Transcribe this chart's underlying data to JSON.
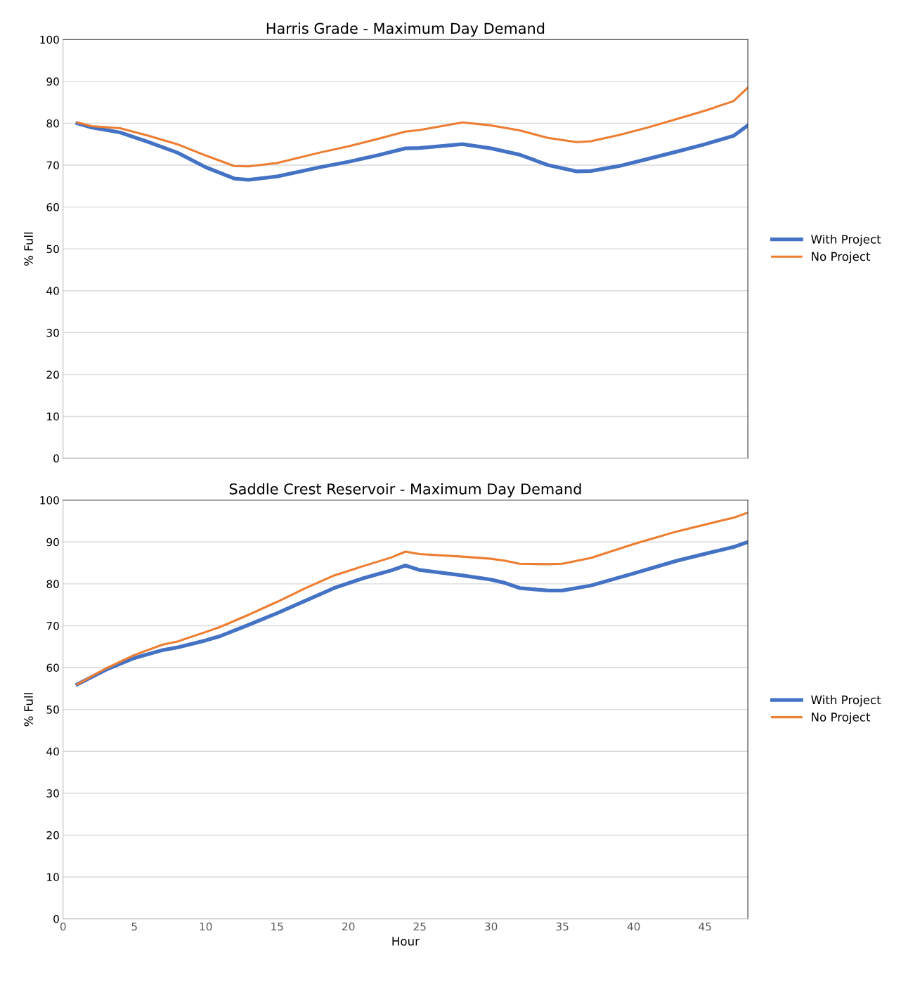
{
  "chart_data": [
    {
      "type": "line",
      "title": "Harris Grade - Maximum Day Demand",
      "ylabel": "% Full",
      "xlim": [
        0,
        48
      ],
      "ylim": [
        0,
        100
      ],
      "yticks": [
        0,
        10,
        20,
        30,
        40,
        50,
        60,
        70,
        80,
        90,
        100
      ],
      "tick_labels": "y",
      "grid": "y",
      "legend": "right",
      "marker": "none",
      "line_style": "solid",
      "series": [
        {
          "name": "With Project",
          "color": "#4472c4",
          "x": [
            1,
            2,
            4,
            6,
            8,
            10,
            12,
            13,
            15,
            18,
            20,
            22,
            24,
            25,
            28,
            30,
            32,
            34,
            36,
            37,
            39,
            41,
            43,
            45,
            47,
            48
          ],
          "values": [
            80,
            79,
            77.8,
            75.5,
            73,
            69.5,
            66.8,
            66.5,
            67.3,
            69.5,
            70.8,
            72.3,
            74,
            74.1,
            75,
            74,
            72.5,
            70,
            68.5,
            68.6,
            69.8,
            71.5,
            73.2,
            75,
            77,
            79.5
          ]
        },
        {
          "name": "No Project",
          "color": "#ed7d31",
          "x": [
            1,
            2,
            4,
            6,
            8,
            10,
            12,
            13,
            15,
            18,
            20,
            22,
            24,
            25,
            28,
            30,
            32,
            34,
            36,
            37,
            39,
            41,
            43,
            45,
            47,
            48
          ],
          "values": [
            80.2,
            79.3,
            78.8,
            77,
            75,
            72.3,
            69.8,
            69.7,
            70.5,
            73,
            74.5,
            76.2,
            78,
            78.4,
            80.2,
            79.5,
            78.3,
            76.5,
            75.5,
            75.7,
            77.2,
            79,
            81,
            83,
            85.3,
            88.5
          ]
        }
      ]
    },
    {
      "type": "line",
      "title": "Saddle Crest Reservoir - Maximum Day Demand",
      "xlabel": "Hour",
      "ylabel": "% Full",
      "xlim": [
        0,
        48
      ],
      "xticks": [
        0,
        5,
        10,
        15,
        20,
        25,
        30,
        35,
        40,
        45
      ],
      "ylim": [
        0,
        100
      ],
      "yticks": [
        0,
        10,
        20,
        30,
        40,
        50,
        60,
        70,
        80,
        90,
        100
      ],
      "grid": "y",
      "legend": "right",
      "marker": "none",
      "line_style": "solid",
      "series": [
        {
          "name": "With Project",
          "color": "#4472c4",
          "x": [
            1,
            3,
            5,
            7,
            8,
            10,
            11,
            13,
            15,
            17,
            19,
            21,
            23,
            24,
            25,
            28,
            30,
            31,
            32,
            34,
            35,
            37,
            40,
            43,
            46,
            47,
            48
          ],
          "values": [
            56,
            59.5,
            62.3,
            64.2,
            64.8,
            66.5,
            67.5,
            70.2,
            73,
            76,
            79,
            81.3,
            83.2,
            84.4,
            83.3,
            82,
            81,
            80.2,
            79,
            78.4,
            78.4,
            79.6,
            82.5,
            85.5,
            88,
            88.8,
            90
          ]
        },
        {
          "name": "No Project",
          "color": "#ed7d31",
          "x": [
            1,
            3,
            5,
            7,
            8,
            10,
            11,
            13,
            15,
            17,
            19,
            21,
            23,
            24,
            25,
            28,
            30,
            31,
            32,
            34,
            35,
            37,
            40,
            43,
            46,
            47,
            48
          ],
          "values": [
            56,
            59.8,
            63,
            65.5,
            66.2,
            68.5,
            69.7,
            72.6,
            75.7,
            79,
            82,
            84.2,
            86.3,
            87.7,
            87.1,
            86.5,
            86,
            85.5,
            84.8,
            84.7,
            84.8,
            86.2,
            89.5,
            92.5,
            95,
            95.8,
            97
          ]
        }
      ]
    }
  ]
}
